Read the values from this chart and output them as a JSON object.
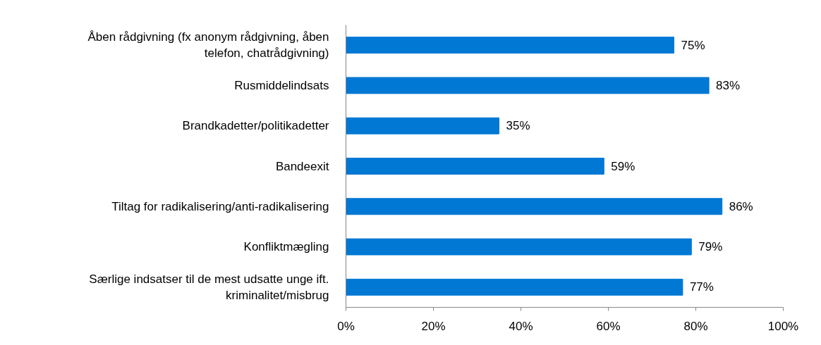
{
  "chart_data": {
    "type": "bar",
    "orientation": "horizontal",
    "categories": [
      "Åben rådgivning (fx anonym rådgivning, åben telefon, chatrådgivning)",
      "Rusmiddelindsats",
      "Brandkadetter/politikadetter",
      "Bandeexit",
      "Tiltag for radikalisering/anti-radikalisering",
      "Konfliktmægling",
      "Særlige indsatser til de mest udsatte unge ift. kriminalitet/misbrug"
    ],
    "values": [
      75,
      83,
      35,
      59,
      86,
      79,
      77
    ],
    "value_labels": [
      "75%",
      "83%",
      "35%",
      "59%",
      "86%",
      "79%",
      "77%"
    ],
    "color": "#0078d4",
    "xlim": [
      0,
      100
    ],
    "xticks": [
      {
        "value": 0,
        "label": "0%"
      },
      {
        "value": 20,
        "label": "20%"
      },
      {
        "value": 40,
        "label": "40%"
      },
      {
        "value": 60,
        "label": "60%"
      },
      {
        "value": 80,
        "label": "80%"
      },
      {
        "value": 100,
        "label": "100%"
      }
    ],
    "grid": false
  }
}
